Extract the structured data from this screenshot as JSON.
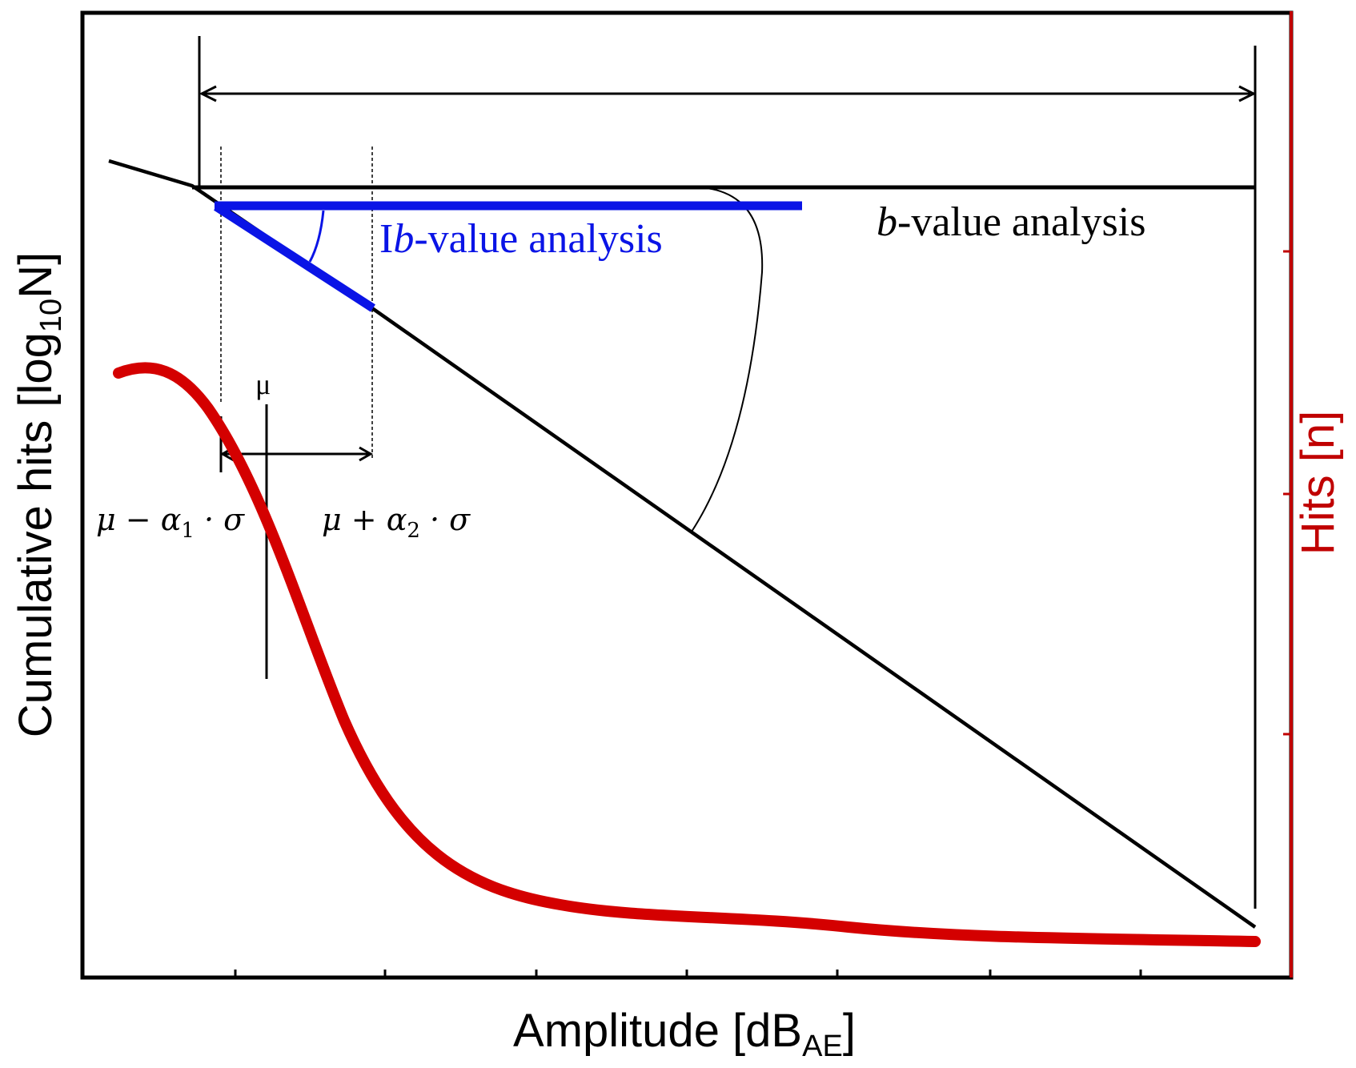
{
  "axes": {
    "x_label": "Amplitude [dB",
    "x_label_sub": "AE",
    "x_label_close": "]",
    "y_left_label": "Cumulative hits [log",
    "y_left_label_sub": "10",
    "y_left_label_close": "N]",
    "y_right_label": "Hits [n]"
  },
  "annotations": {
    "b_value": {
      "italic": "b",
      "rest": "-value analysis"
    },
    "ib_value": {
      "prefix": "I",
      "italic": "b",
      "rest": "-value analysis"
    },
    "mu": "μ",
    "mu_minus": {
      "mu": "μ",
      "op": " − ",
      "alpha": "α",
      "sub": "1",
      "rest": " · σ"
    },
    "mu_plus": {
      "mu": "μ",
      "op": " + ",
      "alpha": "α",
      "sub": "2",
      "rest": " · σ"
    }
  },
  "colors": {
    "frame": "#000000",
    "ib_line": "#0a14e6",
    "hits_curve": "#d40000",
    "right_axis": "#c00000"
  }
}
